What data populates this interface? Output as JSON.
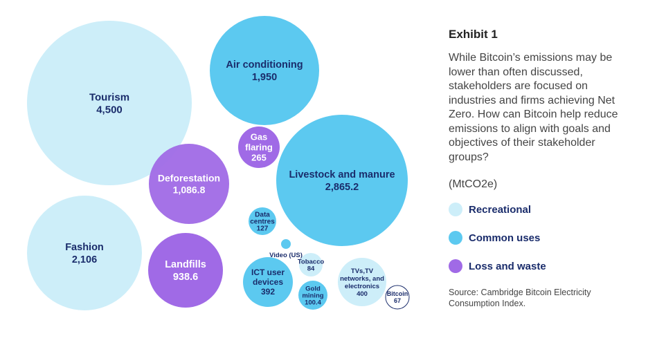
{
  "exhibit_title": "Exhibit 1",
  "description": "While Bitcoin’s emissions may be lower than often discussed, stakeholders are focused on industries and firms achieving Net Zero. How can Bitcoin help reduce emissions to align with goals and objectives of their stakeholder groups?",
  "unit_label": "(MtCO2e)",
  "source": "Source: Cambridge Bitcoin Electricity Consumption Index.",
  "legend": [
    {
      "key": "recreational",
      "label": "Recreational",
      "color": "#cdeef9"
    },
    {
      "key": "common",
      "label": "Common uses",
      "color": "#5cc9f0"
    },
    {
      "key": "loss",
      "label": "Loss and waste",
      "color": "#a06ae6"
    }
  ],
  "colors": {
    "recreational": "#cdeef9",
    "common": "#5cc9f0",
    "loss": "#a06ae6",
    "label_dark": "#1a2c6b",
    "label_light": "#ffffff",
    "bitcoin_outline": "#1a2c6b"
  },
  "chart_data": {
    "type": "bubble",
    "unit": "MtCO2e",
    "items": [
      {
        "name": "Tourism",
        "value": "4,500",
        "num": 4500,
        "category": "recreational"
      },
      {
        "name": "Air conditioning",
        "value": "1,950",
        "num": 1950,
        "category": "common"
      },
      {
        "name": "Gas flaring",
        "value": "265",
        "num": 265,
        "category": "loss"
      },
      {
        "name": "Livestock and manure",
        "value": "2,865.2",
        "num": 2865.2,
        "category": "common"
      },
      {
        "name": "Deforestation",
        "value": "1,086.8",
        "num": 1086.8,
        "category": "loss"
      },
      {
        "name": "Fashion",
        "value": "2,106",
        "num": 2106,
        "category": "recreational"
      },
      {
        "name": "Landfills",
        "value": "938.6",
        "num": 938.6,
        "category": "loss"
      },
      {
        "name": "Data centres",
        "value": "127",
        "num": 127,
        "category": "common"
      },
      {
        "name": "Video (US)",
        "value": "",
        "num": 30,
        "category": "common"
      },
      {
        "name": "Tobacco",
        "value": "84",
        "num": 84,
        "category": "recreational"
      },
      {
        "name": "ICT user devices",
        "value": "392",
        "num": 392,
        "category": "common"
      },
      {
        "name": "Gold mining",
        "value": "100.4",
        "num": 100.4,
        "category": "common"
      },
      {
        "name": "TVs,TV networks, and electronics",
        "value": "400",
        "num": 400,
        "category": "recreational"
      },
      {
        "name": "Bitcoin",
        "value": "67",
        "num": 67,
        "category": "bitcoin"
      }
    ]
  }
}
